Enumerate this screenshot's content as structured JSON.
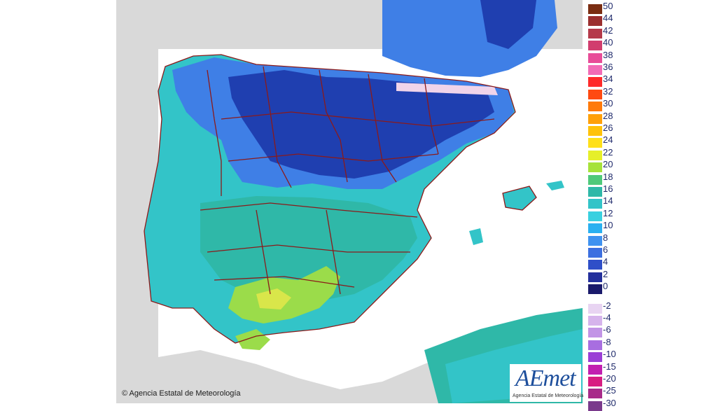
{
  "map": {
    "colors": {
      "sea": "#ffffff",
      "land_outside": "#d9d9d9",
      "border": "#8b1a1a",
      "cold": "#1f3fb0",
      "cool": "#3f7fe6",
      "mild": "#33c4d8",
      "teal": "#2fb8a8",
      "warm": "#9bdc4a",
      "hot": "#d9e64a"
    }
  },
  "legend": {
    "entries": [
      {
        "label": "50",
        "color": "#7a2d12"
      },
      {
        "label": "44",
        "color": "#9b2f2f"
      },
      {
        "label": "42",
        "color": "#b53a4a"
      },
      {
        "label": "40",
        "color": "#d13d6e"
      },
      {
        "label": "38",
        "color": "#e84c98"
      },
      {
        "label": "36",
        "color": "#f26bb6"
      },
      {
        "label": "34",
        "color": "#ff2a2a"
      },
      {
        "label": "32",
        "color": "#ff4a12"
      },
      {
        "label": "30",
        "color": "#ff7a0a"
      },
      {
        "label": "28",
        "color": "#ffa00a"
      },
      {
        "label": "26",
        "color": "#ffc20a"
      },
      {
        "label": "24",
        "color": "#ffe01a"
      },
      {
        "label": "22",
        "color": "#e6ef2a"
      },
      {
        "label": "20",
        "color": "#a6e23a"
      },
      {
        "label": "18",
        "color": "#4fc97a"
      },
      {
        "label": "16",
        "color": "#2fb8a8"
      },
      {
        "label": "14",
        "color": "#33c4c8"
      },
      {
        "label": "12",
        "color": "#39d0e0"
      },
      {
        "label": "10",
        "color": "#2ab0f0"
      },
      {
        "label": "8",
        "color": "#3f92f0"
      },
      {
        "label": "6",
        "color": "#3c6fe0"
      },
      {
        "label": "4",
        "color": "#2f4fc8"
      },
      {
        "label": "2",
        "color": "#24309c"
      },
      {
        "label": "0",
        "color": "#1a1a6b"
      },
      {
        "label": "-2",
        "color": "#e8d4f2"
      },
      {
        "label": "-4",
        "color": "#d6b4ec"
      },
      {
        "label": "-6",
        "color": "#c294e6"
      },
      {
        "label": "-8",
        "color": "#a86ee0"
      },
      {
        "label": "-10",
        "color": "#9b3fd6"
      },
      {
        "label": "-15",
        "color": "#c21fb0"
      },
      {
        "label": "-20",
        "color": "#d81d82"
      },
      {
        "label": "-25",
        "color": "#a82a8a"
      },
      {
        "label": "-30",
        "color": "#7a3a8c"
      }
    ]
  },
  "copyright": "© Agencia Estatal de Meteorología",
  "logo": {
    "mark": "AEmet",
    "subtitle": "Agencia Estatal de Meteorología"
  }
}
